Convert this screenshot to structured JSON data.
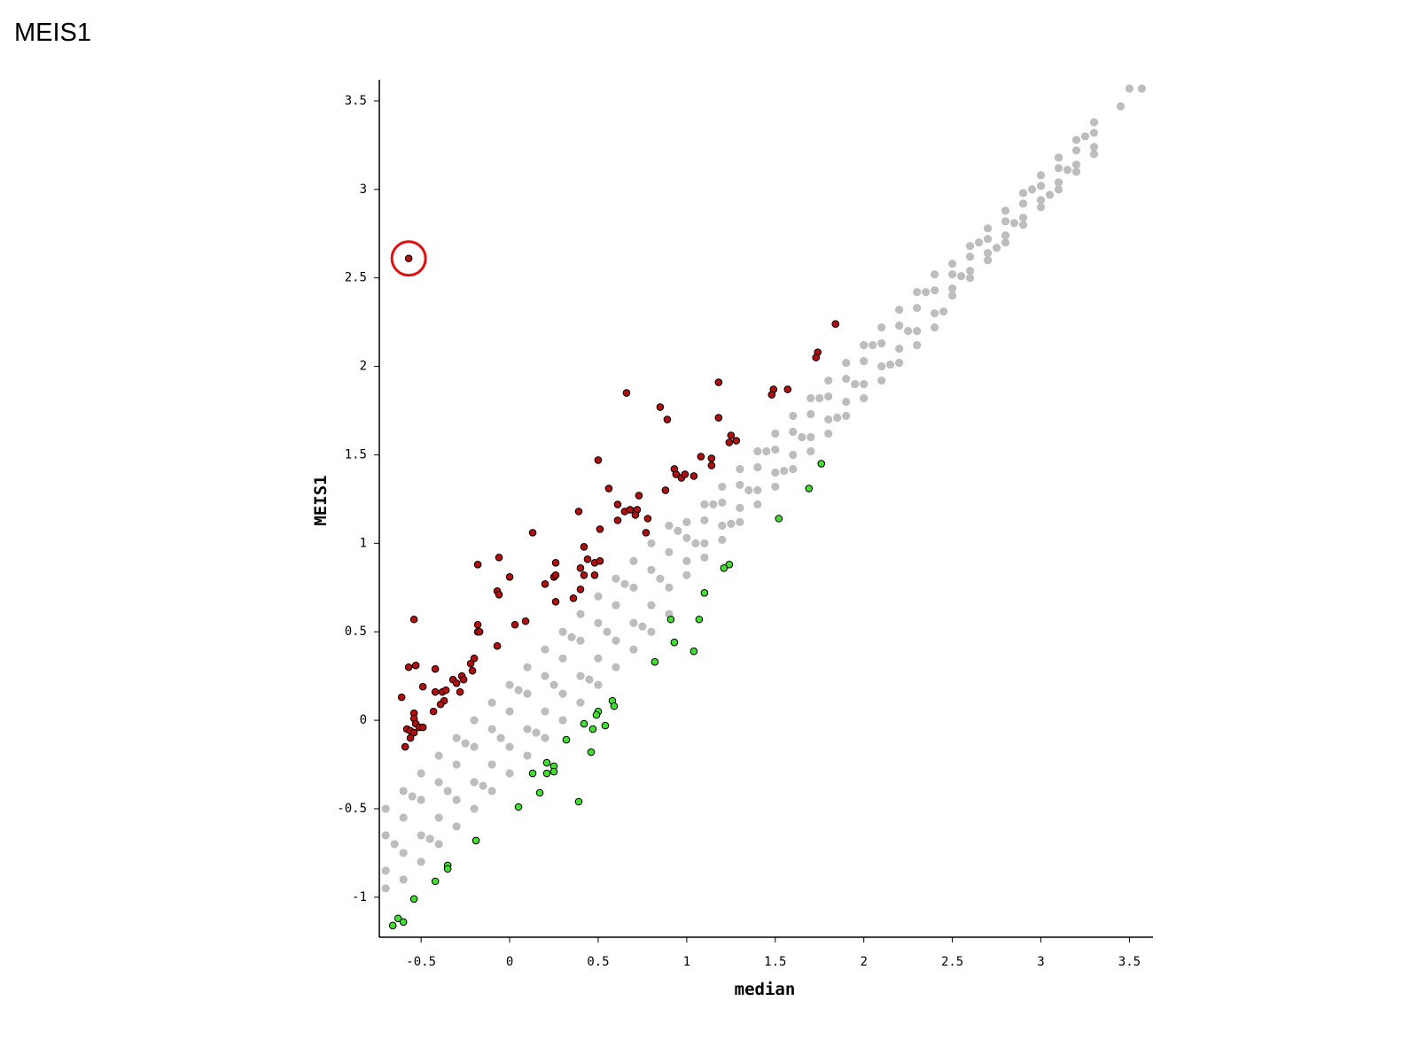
{
  "chart_data": {
    "type": "scatter",
    "title": "MEIS1",
    "x_label": "median",
    "y_label": "MEIS1",
    "xlim": [
      -0.736,
      3.633
    ],
    "ylim": [
      -1.226,
      3.62
    ],
    "xticks": [
      -0.5,
      0,
      0.5,
      1,
      1.5,
      2,
      2.5,
      3,
      3.5
    ],
    "yticks": [
      -1,
      -0.5,
      0,
      0.5,
      1,
      1.5,
      2,
      2.5,
      3,
      3.5
    ],
    "series": [
      {
        "color": "#bdbdbd",
        "x": [
          -0.7,
          -0.7,
          -0.7,
          -0.7,
          -0.6,
          -0.6,
          -0.6,
          -0.6,
          -0.5,
          -0.5,
          -0.5,
          -0.5,
          -0.4,
          -0.4,
          -0.4,
          -0.4,
          -0.3,
          -0.3,
          -0.3,
          -0.3,
          -0.2,
          -0.2,
          -0.2,
          -0.2,
          -0.1,
          -0.1,
          -0.1,
          -0.1,
          0,
          0,
          0,
          0,
          0.1,
          0.1,
          0.1,
          0.1,
          0.2,
          0.2,
          0.2,
          0.2,
          0.3,
          0.3,
          0.3,
          0.3,
          0.4,
          0.4,
          0.4,
          0.4,
          0.5,
          0.5,
          0.5,
          0.5,
          0.6,
          0.6,
          0.6,
          0.6,
          0.7,
          0.7,
          0.7,
          0.7,
          0.8,
          0.8,
          0.8,
          0.8,
          0.9,
          0.9,
          0.9,
          0.9,
          1,
          1,
          1,
          1,
          1.1,
          1.1,
          1.1,
          1.1,
          1.2,
          1.2,
          1.2,
          1.2,
          1.3,
          1.3,
          1.3,
          1.3,
          1.4,
          1.4,
          1.4,
          1.4,
          1.5,
          1.5,
          1.5,
          1.5,
          1.6,
          1.6,
          1.6,
          1.6,
          1.7,
          1.7,
          1.7,
          1.7,
          1.8,
          1.8,
          1.8,
          1.8,
          1.9,
          1.9,
          1.9,
          1.9,
          2,
          2,
          2,
          2,
          2.1,
          2.1,
          2.1,
          2.1,
          2.2,
          2.2,
          2.2,
          2.2,
          2.3,
          2.3,
          2.3,
          2.3,
          2.4,
          2.4,
          2.4,
          2.4,
          2.5,
          2.5,
          2.5,
          2.5,
          2.6,
          2.6,
          2.6,
          2.6,
          2.7,
          2.7,
          2.7,
          2.7,
          2.8,
          2.8,
          2.8,
          2.8,
          2.9,
          2.9,
          2.9,
          2.9,
          3,
          3,
          3,
          3,
          3.1,
          3.1,
          3.1,
          3.1,
          3.2,
          3.2,
          3.2,
          3.2,
          3.3,
          3.3,
          3.3,
          3.3,
          3.45,
          3.5,
          3.57,
          -0.65,
          -0.55,
          -0.45,
          -0.35,
          -0.25,
          -0.15,
          -0.05,
          0.05,
          0.15,
          0.25,
          0.35,
          0.45,
          0.55,
          0.65,
          0.75,
          0.85,
          0.95,
          1.05,
          1.15,
          1.25,
          1.35,
          1.45,
          1.55,
          1.65,
          1.75,
          1.85,
          1.95,
          2.05,
          2.15,
          2.25,
          2.35,
          2.45,
          2.55,
          2.65,
          2.75,
          2.85,
          2.95,
          3.05,
          3.15,
          3.25
        ],
        "values": [
          -0.5,
          -0.85,
          -0.65,
          -0.95,
          -0.4,
          -0.75,
          -0.55,
          -0.9,
          -0.3,
          -0.65,
          -0.45,
          -0.8,
          -0.2,
          -0.55,
          -0.35,
          -0.7,
          -0.1,
          -0.45,
          -0.25,
          -0.6,
          0,
          -0.35,
          -0.15,
          -0.5,
          0.1,
          -0.25,
          -0.05,
          -0.4,
          0.2,
          -0.15,
          0.05,
          -0.3,
          0.3,
          -0.05,
          0.15,
          -0.2,
          0.4,
          0.05,
          0.25,
          -0.1,
          0.5,
          0.15,
          0.35,
          0,
          0.6,
          0.25,
          0.45,
          0.1,
          0.7,
          0.35,
          0.55,
          0.2,
          0.8,
          0.45,
          0.65,
          0.3,
          0.9,
          0.55,
          0.75,
          0.4,
          1,
          0.65,
          0.85,
          0.5,
          1.1,
          0.75,
          0.95,
          0.6,
          1.12,
          0.9,
          1.03,
          0.82,
          1.22,
          1,
          1.13,
          0.92,
          1.32,
          1.1,
          1.23,
          1.02,
          1.42,
          1.2,
          1.33,
          1.12,
          1.52,
          1.3,
          1.43,
          1.22,
          1.62,
          1.4,
          1.53,
          1.32,
          1.72,
          1.5,
          1.63,
          1.42,
          1.82,
          1.6,
          1.73,
          1.52,
          1.92,
          1.7,
          1.83,
          1.62,
          2.02,
          1.8,
          1.93,
          1.72,
          2.12,
          1.9,
          2.03,
          1.82,
          2.22,
          2,
          2.13,
          1.92,
          2.32,
          2.1,
          2.23,
          2.02,
          2.42,
          2.2,
          2.33,
          2.12,
          2.52,
          2.3,
          2.43,
          2.22,
          2.58,
          2.44,
          2.52,
          2.4,
          2.68,
          2.54,
          2.62,
          2.5,
          2.78,
          2.64,
          2.72,
          2.6,
          2.88,
          2.74,
          2.82,
          2.7,
          2.98,
          2.84,
          2.92,
          2.8,
          3.08,
          2.94,
          3.02,
          2.9,
          3.18,
          3.04,
          3.12,
          3,
          3.28,
          3.14,
          3.22,
          3.1,
          3.38,
          3.24,
          3.32,
          3.2,
          3.47,
          3.57,
          3.57,
          -0.7,
          -0.43,
          -0.67,
          -0.4,
          -0.13,
          -0.37,
          -0.1,
          0.17,
          -0.07,
          0.2,
          0.47,
          0.23,
          0.5,
          0.77,
          0.53,
          0.8,
          1.07,
          1,
          1.22,
          1.11,
          1.3,
          1.52,
          1.41,
          1.6,
          1.82,
          1.71,
          1.9,
          2.12,
          2.01,
          2.2,
          2.42,
          2.31,
          2.51,
          2.7,
          2.67,
          2.81,
          3,
          2.97,
          3.11,
          3.3
        ]
      },
      {
        "color": "#b01010",
        "x": [
          -0.57,
          1.84,
          1.74,
          1.73,
          1.18,
          0.66,
          0.85,
          0.89,
          1.49,
          1.48,
          1.57,
          1.18,
          1.25,
          1.24,
          1.28,
          1.08,
          1.14,
          1.14,
          0.5,
          0.93,
          0.94,
          0.97,
          0.99,
          1.04,
          0.88,
          0.56,
          0.61,
          0.73,
          0.65,
          0.68,
          0.72,
          0.71,
          0.61,
          0.78,
          0.39,
          0.51,
          0.77,
          0.13,
          0.42,
          -0.06,
          0.26,
          0.44,
          0.48,
          0.51,
          -0.18,
          0.4,
          0.42,
          0.48,
          0.25,
          0.26,
          0,
          0.2,
          0.4,
          -0.07,
          -0.06,
          0.36,
          0.26,
          -0.54,
          0.09,
          0.03,
          -0.18,
          -0.18,
          -0.17,
          -0.07,
          -0.2,
          -0.57,
          -0.53,
          -0.42,
          -0.22,
          -0.21,
          -0.27,
          -0.26,
          -0.32,
          -0.3,
          -0.49,
          -0.42,
          -0.38,
          -0.36,
          -0.28,
          -0.61,
          -0.37,
          -0.39,
          -0.43,
          -0.54,
          -0.54,
          -0.53,
          -0.58,
          -0.51,
          -0.56,
          -0.49,
          -0.54,
          -0.56,
          -0.59
        ],
        "values": [
          2.61,
          2.24,
          2.08,
          2.05,
          1.91,
          1.85,
          1.77,
          1.7,
          1.87,
          1.84,
          1.87,
          1.71,
          1.61,
          1.57,
          1.58,
          1.49,
          1.48,
          1.44,
          1.47,
          1.42,
          1.39,
          1.37,
          1.39,
          1.38,
          1.3,
          1.31,
          1.22,
          1.27,
          1.18,
          1.19,
          1.19,
          1.16,
          1.13,
          1.14,
          1.18,
          1.08,
          1.06,
          1.06,
          0.98,
          0.92,
          0.89,
          0.91,
          0.89,
          0.9,
          0.88,
          0.86,
          0.82,
          0.82,
          0.81,
          0.82,
          0.81,
          0.77,
          0.74,
          0.73,
          0.71,
          0.69,
          0.67,
          0.57,
          0.56,
          0.54,
          0.54,
          0.5,
          0.5,
          0.42,
          0.35,
          0.3,
          0.31,
          0.29,
          0.32,
          0.28,
          0.25,
          0.23,
          0.23,
          0.21,
          0.19,
          0.16,
          0.16,
          0.17,
          0.16,
          0.13,
          0.11,
          0.09,
          0.05,
          0.04,
          0.01,
          -0.02,
          -0.05,
          -0.04,
          -0.06,
          -0.04,
          -0.07,
          -0.1,
          -0.15
        ]
      },
      {
        "color": "#44dd33",
        "x": [
          1.76,
          1.69,
          1.52,
          1.24,
          1.21,
          1.1,
          0.91,
          1.07,
          0.93,
          1.04,
          0.82,
          0.58,
          0.59,
          0.5,
          0.49,
          0.42,
          0.54,
          0.47,
          0.32,
          0.46,
          0.21,
          0.25,
          0.25,
          0.21,
          0.13,
          0.17,
          0.39,
          0.05,
          -0.19,
          -0.35,
          -0.35,
          -0.42,
          -0.54,
          -0.63,
          -0.6,
          -0.66
        ],
        "values": [
          1.45,
          1.31,
          1.14,
          0.88,
          0.86,
          0.72,
          0.57,
          0.57,
          0.44,
          0.39,
          0.33,
          0.11,
          0.08,
          0.05,
          0.03,
          -0.02,
          -0.03,
          -0.05,
          -0.11,
          -0.18,
          -0.24,
          -0.26,
          -0.29,
          -0.3,
          -0.3,
          -0.41,
          -0.46,
          -0.49,
          -0.68,
          -0.82,
          -0.84,
          -0.91,
          -1.01,
          -1.12,
          -1.14,
          -1.16
        ]
      }
    ]
  }
}
